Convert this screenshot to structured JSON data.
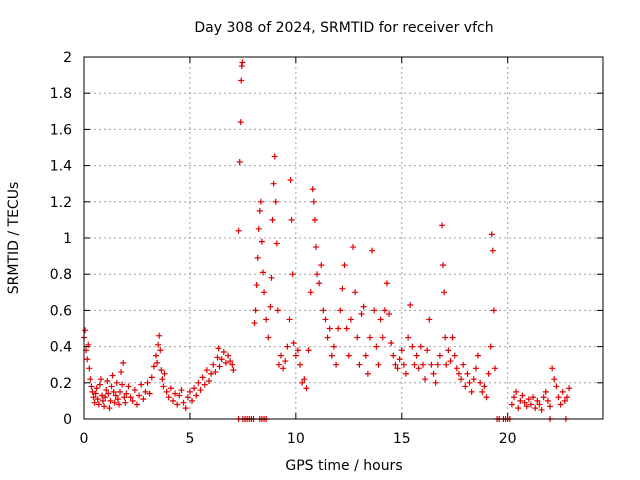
{
  "chart_data": {
    "type": "scatter",
    "title": "Day 308 of 2024, SRMTID for receiver vfch",
    "xlabel": "GPS time / hours",
    "ylabel": "SRMTID / TECUs",
    "xlim": [
      0,
      24.5
    ],
    "ylim": [
      0,
      2
    ],
    "grid": true,
    "marker": "+",
    "color": "#e00000",
    "x_ticks": [
      {
        "value": 0,
        "label": "0"
      },
      {
        "value": 5,
        "label": "5"
      },
      {
        "value": 10,
        "label": "10"
      },
      {
        "value": 15,
        "label": "15"
      },
      {
        "value": 20,
        "label": "20"
      }
    ],
    "y_ticks": [
      {
        "value": 0,
        "label": "0"
      },
      {
        "value": 0.2,
        "label": "0.2"
      },
      {
        "value": 0.4,
        "label": "0.4"
      },
      {
        "value": 0.6,
        "label": "0.6"
      },
      {
        "value": 0.8,
        "label": "0.8"
      },
      {
        "value": 1.0,
        "label": "1"
      },
      {
        "value": 1.2,
        "label": "1.2"
      },
      {
        "value": 1.4,
        "label": "1.4"
      },
      {
        "value": 1.6,
        "label": "1.6"
      },
      {
        "value": 1.8,
        "label": "1.8"
      },
      {
        "value": 2.0,
        "label": "2"
      }
    ],
    "series": [
      {
        "name": "SRMTID",
        "points": [
          [
            0.0,
            0.45
          ],
          [
            0.05,
            0.49
          ],
          [
            0.1,
            0.38
          ],
          [
            0.15,
            0.33
          ],
          [
            0.2,
            0.41
          ],
          [
            0.25,
            0.28
          ],
          [
            0.3,
            0.22
          ],
          [
            0.35,
            0.18
          ],
          [
            0.4,
            0.15
          ],
          [
            0.45,
            0.12
          ],
          [
            0.5,
            0.09
          ],
          [
            0.55,
            0.14
          ],
          [
            0.6,
            0.17
          ],
          [
            0.65,
            0.11
          ],
          [
            0.7,
            0.08
          ],
          [
            0.75,
            0.19
          ],
          [
            0.8,
            0.22
          ],
          [
            0.85,
            0.13
          ],
          [
            0.9,
            0.1
          ],
          [
            0.95,
            0.07
          ],
          [
            1.0,
            0.12
          ],
          [
            1.05,
            0.16
          ],
          [
            1.1,
            0.21
          ],
          [
            1.15,
            0.14
          ],
          [
            1.2,
            0.06
          ],
          [
            1.25,
            0.1
          ],
          [
            1.3,
            0.18
          ],
          [
            1.35,
            0.24
          ],
          [
            1.4,
            0.15
          ],
          [
            1.45,
            0.09
          ],
          [
            1.5,
            0.13
          ],
          [
            1.55,
            0.2
          ],
          [
            1.6,
            0.11
          ],
          [
            1.65,
            0.08
          ],
          [
            1.7,
            0.15
          ],
          [
            1.75,
            0.26
          ],
          [
            1.8,
            0.19
          ],
          [
            1.85,
            0.31
          ],
          [
            1.9,
            0.12
          ],
          [
            1.95,
            0.09
          ],
          [
            2.0,
            0.14
          ],
          [
            2.1,
            0.18
          ],
          [
            2.2,
            0.12
          ],
          [
            2.3,
            0.1
          ],
          [
            2.4,
            0.16
          ],
          [
            2.5,
            0.08
          ],
          [
            2.6,
            0.13
          ],
          [
            2.7,
            0.19
          ],
          [
            2.8,
            0.11
          ],
          [
            2.9,
            0.15
          ],
          [
            3.0,
            0.2
          ],
          [
            3.1,
            0.14
          ],
          [
            3.2,
            0.23
          ],
          [
            3.3,
            0.29
          ],
          [
            3.4,
            0.35
          ],
          [
            3.45,
            0.31
          ],
          [
            3.5,
            0.41
          ],
          [
            3.55,
            0.46
          ],
          [
            3.6,
            0.38
          ],
          [
            3.65,
            0.27
          ],
          [
            3.7,
            0.22
          ],
          [
            3.75,
            0.18
          ],
          [
            3.8,
            0.25
          ],
          [
            3.9,
            0.15
          ],
          [
            4.0,
            0.12
          ],
          [
            4.1,
            0.17
          ],
          [
            4.2,
            0.1
          ],
          [
            4.3,
            0.14
          ],
          [
            4.4,
            0.08
          ],
          [
            4.5,
            0.13
          ],
          [
            4.6,
            0.16
          ],
          [
            4.7,
            0.09
          ],
          [
            4.8,
            0.06
          ],
          [
            4.9,
            0.12
          ],
          [
            5.0,
            0.15
          ],
          [
            5.1,
            0.1
          ],
          [
            5.2,
            0.17
          ],
          [
            5.3,
            0.13
          ],
          [
            5.4,
            0.2
          ],
          [
            5.5,
            0.16
          ],
          [
            5.6,
            0.23
          ],
          [
            5.7,
            0.19
          ],
          [
            5.8,
            0.27
          ],
          [
            5.9,
            0.21
          ],
          [
            6.0,
            0.25
          ],
          [
            6.1,
            0.3
          ],
          [
            6.2,
            0.26
          ],
          [
            6.3,
            0.34
          ],
          [
            6.35,
            0.39
          ],
          [
            6.4,
            0.29
          ],
          [
            6.5,
            0.33
          ],
          [
            6.6,
            0.37
          ],
          [
            6.7,
            0.31
          ],
          [
            6.8,
            0.35
          ],
          [
            6.9,
            0.32
          ],
          [
            7.0,
            0.3
          ],
          [
            7.05,
            0.27
          ],
          [
            7.3,
            1.04
          ],
          [
            7.35,
            1.42
          ],
          [
            7.4,
            1.64
          ],
          [
            7.42,
            1.87
          ],
          [
            7.45,
            1.95
          ],
          [
            7.48,
            1.97
          ],
          [
            7.3,
            0.0
          ],
          [
            7.5,
            0.0
          ],
          [
            7.6,
            0.0
          ],
          [
            7.7,
            0.0
          ],
          [
            7.8,
            0.0
          ],
          [
            7.9,
            0.0
          ],
          [
            8.0,
            0.0
          ],
          [
            8.05,
            0.53
          ],
          [
            8.1,
            0.6
          ],
          [
            8.15,
            0.74
          ],
          [
            8.2,
            0.89
          ],
          [
            8.25,
            1.05
          ],
          [
            8.3,
            1.15
          ],
          [
            8.35,
            1.2
          ],
          [
            8.4,
            0.98
          ],
          [
            8.45,
            0.81
          ],
          [
            8.5,
            0.7
          ],
          [
            8.3,
            0.0
          ],
          [
            8.4,
            0.0
          ],
          [
            8.5,
            0.0
          ],
          [
            8.6,
            0.0
          ],
          [
            8.6,
            0.55
          ],
          [
            8.7,
            0.45
          ],
          [
            8.8,
            0.62
          ],
          [
            8.85,
            0.78
          ],
          [
            8.9,
            1.1
          ],
          [
            8.95,
            1.3
          ],
          [
            9.0,
            1.45
          ],
          [
            9.05,
            1.2
          ],
          [
            9.1,
            0.97
          ],
          [
            9.15,
            0.6
          ],
          [
            9.2,
            0.3
          ],
          [
            9.3,
            0.35
          ],
          [
            9.4,
            0.28
          ],
          [
            9.5,
            0.32
          ],
          [
            9.6,
            0.4
          ],
          [
            9.7,
            0.55
          ],
          [
            9.75,
            1.32
          ],
          [
            9.8,
            1.1
          ],
          [
            9.85,
            0.8
          ],
          [
            9.9,
            0.42
          ],
          [
            10.0,
            0.35
          ],
          [
            10.1,
            0.38
          ],
          [
            10.2,
            0.3
          ],
          [
            10.3,
            0.2
          ],
          [
            10.4,
            0.22
          ],
          [
            10.5,
            0.17
          ],
          [
            10.6,
            0.38
          ],
          [
            10.7,
            0.7
          ],
          [
            10.8,
            1.27
          ],
          [
            10.85,
            1.2
          ],
          [
            10.9,
            1.1
          ],
          [
            10.95,
            0.95
          ],
          [
            11.0,
            0.8
          ],
          [
            11.1,
            0.75
          ],
          [
            11.2,
            0.85
          ],
          [
            11.3,
            0.6
          ],
          [
            11.4,
            0.55
          ],
          [
            11.5,
            0.45
          ],
          [
            11.6,
            0.5
          ],
          [
            11.7,
            0.35
          ],
          [
            11.8,
            0.4
          ],
          [
            11.9,
            0.3
          ],
          [
            12.0,
            0.5
          ],
          [
            12.1,
            0.6
          ],
          [
            12.2,
            0.72
          ],
          [
            12.3,
            0.85
          ],
          [
            12.4,
            0.5
          ],
          [
            12.5,
            0.35
          ],
          [
            12.6,
            0.55
          ],
          [
            12.7,
            0.95
          ],
          [
            12.8,
            0.7
          ],
          [
            12.9,
            0.45
          ],
          [
            13.0,
            0.3
          ],
          [
            13.1,
            0.58
          ],
          [
            13.2,
            0.62
          ],
          [
            13.3,
            0.35
          ],
          [
            13.4,
            0.25
          ],
          [
            13.5,
            0.45
          ],
          [
            13.6,
            0.93
          ],
          [
            13.7,
            0.6
          ],
          [
            13.8,
            0.4
          ],
          [
            13.9,
            0.3
          ],
          [
            14.0,
            0.55
          ],
          [
            14.1,
            0.45
          ],
          [
            14.2,
            0.6
          ],
          [
            14.3,
            0.75
          ],
          [
            14.4,
            0.58
          ],
          [
            14.5,
            0.42
          ],
          [
            14.6,
            0.35
          ],
          [
            14.7,
            0.3
          ],
          [
            14.8,
            0.28
          ],
          [
            14.9,
            0.33
          ],
          [
            15.0,
            0.38
          ],
          [
            15.1,
            0.3
          ],
          [
            15.2,
            0.25
          ],
          [
            15.3,
            0.45
          ],
          [
            15.4,
            0.63
          ],
          [
            15.5,
            0.4
          ],
          [
            15.6,
            0.3
          ],
          [
            15.7,
            0.35
          ],
          [
            15.8,
            0.28
          ],
          [
            15.9,
            0.4
          ],
          [
            16.0,
            0.3
          ],
          [
            16.1,
            0.22
          ],
          [
            16.2,
            0.38
          ],
          [
            16.3,
            0.55
          ],
          [
            16.4,
            0.3
          ],
          [
            16.5,
            0.25
          ],
          [
            16.6,
            0.2
          ],
          [
            16.7,
            0.3
          ],
          [
            16.8,
            0.35
          ],
          [
            16.9,
            1.07
          ],
          [
            16.95,
            0.85
          ],
          [
            17.0,
            0.7
          ],
          [
            17.05,
            0.45
          ],
          [
            17.1,
            0.3
          ],
          [
            17.2,
            0.38
          ],
          [
            17.3,
            0.32
          ],
          [
            17.4,
            0.45
          ],
          [
            17.5,
            0.35
          ],
          [
            17.6,
            0.28
          ],
          [
            17.7,
            0.25
          ],
          [
            17.8,
            0.22
          ],
          [
            17.9,
            0.3
          ],
          [
            18.0,
            0.18
          ],
          [
            18.1,
            0.25
          ],
          [
            18.2,
            0.2
          ],
          [
            18.3,
            0.15
          ],
          [
            18.4,
            0.22
          ],
          [
            18.5,
            0.28
          ],
          [
            18.6,
            0.35
          ],
          [
            18.7,
            0.2
          ],
          [
            18.8,
            0.15
          ],
          [
            18.9,
            0.18
          ],
          [
            19.0,
            0.12
          ],
          [
            19.1,
            0.25
          ],
          [
            19.2,
            0.4
          ],
          [
            19.25,
            1.02
          ],
          [
            19.3,
            0.93
          ],
          [
            19.35,
            0.6
          ],
          [
            19.4,
            0.28
          ],
          [
            19.5,
            0.0
          ],
          [
            19.6,
            0.0
          ],
          [
            19.8,
            0.0
          ],
          [
            19.9,
            0.0
          ],
          [
            20.0,
            0.0
          ],
          [
            20.1,
            0.0
          ],
          [
            20.2,
            0.08
          ],
          [
            20.3,
            0.12
          ],
          [
            20.4,
            0.15
          ],
          [
            20.5,
            0.06
          ],
          [
            20.6,
            0.1
          ],
          [
            20.7,
            0.13
          ],
          [
            20.8,
            0.09
          ],
          [
            20.9,
            0.07
          ],
          [
            21.0,
            0.11
          ],
          [
            21.1,
            0.08
          ],
          [
            21.2,
            0.12
          ],
          [
            21.3,
            0.06
          ],
          [
            21.4,
            0.1
          ],
          [
            21.5,
            0.08
          ],
          [
            21.6,
            0.05
          ],
          [
            21.7,
            0.12
          ],
          [
            21.8,
            0.15
          ],
          [
            21.9,
            0.1
          ],
          [
            22.0,
            0.0
          ],
          [
            22.0,
            0.07
          ],
          [
            22.1,
            0.28
          ],
          [
            22.2,
            0.22
          ],
          [
            22.3,
            0.18
          ],
          [
            22.4,
            0.12
          ],
          [
            22.5,
            0.08
          ],
          [
            22.6,
            0.15
          ],
          [
            22.7,
            0.1
          ],
          [
            22.75,
            0.0
          ],
          [
            22.8,
            0.12
          ],
          [
            22.9,
            0.17
          ]
        ]
      }
    ]
  }
}
